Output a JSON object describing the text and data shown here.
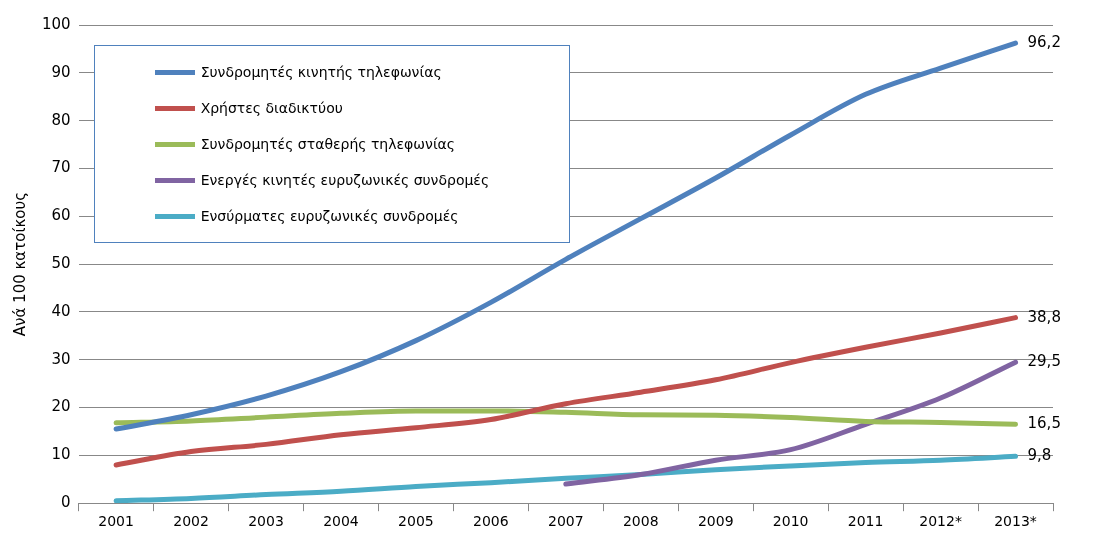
{
  "chart_data": {
    "type": "line",
    "ylabel": "Ανά 100 κατοίκους",
    "categories": [
      "2001",
      "2002",
      "2003",
      "2004",
      "2005",
      "2006",
      "2007",
      "2008",
      "2009",
      "2010",
      "2011",
      "2012*",
      "2013*"
    ],
    "ylim": [
      0,
      100
    ],
    "yticks": [
      0,
      10,
      20,
      30,
      40,
      50,
      60,
      70,
      80,
      90,
      100
    ],
    "grid": "y",
    "legend": "top left",
    "marker": "none",
    "line_style": "solid",
    "series": [
      {
        "name": "Συνδρομητές κινητής τηλεφωνίας",
        "color": "#4f81bd",
        "values": [
          15.5,
          18.5,
          22.4,
          27.5,
          34,
          42,
          51,
          59.5,
          68,
          77,
          85.5,
          91,
          96.2
        ],
        "value_labels": [
          null,
          null,
          null,
          null,
          null,
          null,
          null,
          null,
          null,
          null,
          null,
          null,
          "96,2"
        ]
      },
      {
        "name": "Χρήστες διαδικτύου",
        "color": "#c0504d",
        "values": [
          8,
          10.8,
          12.3,
          14.3,
          15.8,
          17.5,
          20.8,
          23.2,
          25.8,
          29.4,
          32.6,
          35.6,
          38.8
        ],
        "value_labels": [
          null,
          null,
          null,
          null,
          null,
          null,
          null,
          null,
          null,
          null,
          null,
          null,
          "38,8"
        ]
      },
      {
        "name": "Συνδρομητές σταθερής τηλεφωνίας",
        "color": "#9bbb59",
        "values": [
          16.8,
          17.2,
          18,
          18.8,
          19.3,
          19.3,
          19,
          18.5,
          18.4,
          17.9,
          17.1,
          16.9,
          16.5
        ],
        "value_labels": [
          null,
          null,
          null,
          null,
          null,
          null,
          null,
          null,
          null,
          null,
          null,
          null,
          "16,5"
        ]
      },
      {
        "name": "Ενεργές κινητές ευρυζωνικές συνδρομές",
        "color": "#8064a2",
        "values": [
          null,
          null,
          null,
          null,
          null,
          null,
          4,
          6,
          9,
          11.2,
          16.5,
          22,
          29.5
        ],
        "value_labels": [
          null,
          null,
          null,
          null,
          null,
          null,
          null,
          null,
          null,
          null,
          null,
          null,
          "29,5"
        ]
      },
      {
        "name": "Ενσύρματες ευρυζωνικές συνδρομές",
        "color": "#4bacc6",
        "values": [
          0.5,
          1,
          1.8,
          2.5,
          3.5,
          4.3,
          5.2,
          6,
          7,
          7.8,
          8.5,
          9,
          9.8
        ],
        "value_labels": [
          null,
          null,
          null,
          null,
          null,
          null,
          null,
          null,
          null,
          null,
          null,
          null,
          "9,8"
        ]
      }
    ]
  }
}
